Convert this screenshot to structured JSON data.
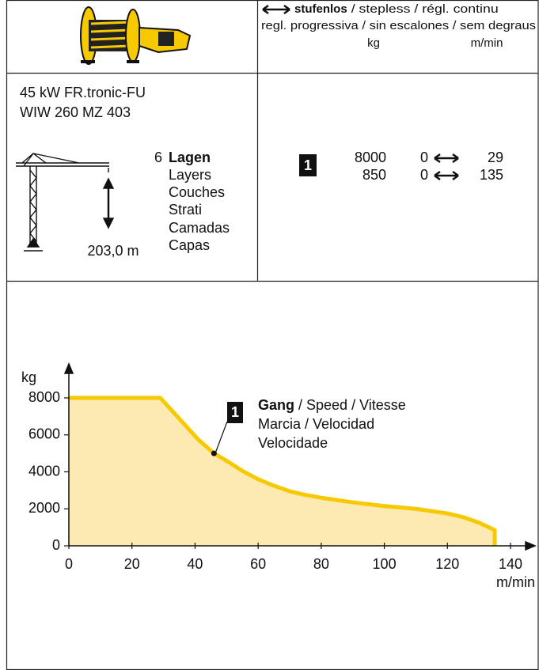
{
  "header": {
    "mode": "stufenlos",
    "mode_translations": "/ stepless / régl. continu",
    "mode_translations_2": "regl. progressiva / sin escalones / sem degraus",
    "unit_load": "kg",
    "unit_speed": "m/min"
  },
  "drive": {
    "lines": [
      "45 kW FR.tronic-FU",
      "WIW 260 MZ 403"
    ],
    "layers_count": "6",
    "layers_label": "Lagen",
    "layers_translations": [
      "Layers",
      "Couches",
      "Strati",
      "Camadas",
      "Capas"
    ],
    "rope_length": "203,0 m"
  },
  "speeds": {
    "gear": "1",
    "rows": [
      [
        8000,
        0,
        29
      ],
      [
        850,
        0,
        135
      ]
    ]
  },
  "chart_data": {
    "type": "area",
    "ylabel": "kg",
    "xlabel": "m/min",
    "x": [
      0,
      29,
      33,
      37,
      41,
      46,
      50,
      55,
      60,
      65,
      70,
      75,
      80,
      90,
      100,
      110,
      120,
      125,
      130,
      135,
      135
    ],
    "series": [
      {
        "color": "#f7c900",
        "fill": "#fde9b2",
        "values": [
          8000,
          8000,
          7250,
          6500,
          5750,
          5000,
          4600,
          4050,
          3600,
          3250,
          2950,
          2750,
          2600,
          2350,
          2150,
          2000,
          1750,
          1550,
          1250,
          850,
          0
        ]
      }
    ],
    "xlim": [
      0,
      140
    ],
    "xticks": [
      0,
      20,
      40,
      60,
      80,
      100,
      120,
      140
    ],
    "ylim": [
      0,
      8000
    ],
    "yticks": [
      0,
      2000,
      4000,
      6000,
      8000
    ],
    "annotation": {
      "badge": "1",
      "title": "Gang",
      "lines": [
        "/ Speed / Vitesse",
        "Marcia / Velocidad",
        "Velocidade"
      ]
    }
  }
}
